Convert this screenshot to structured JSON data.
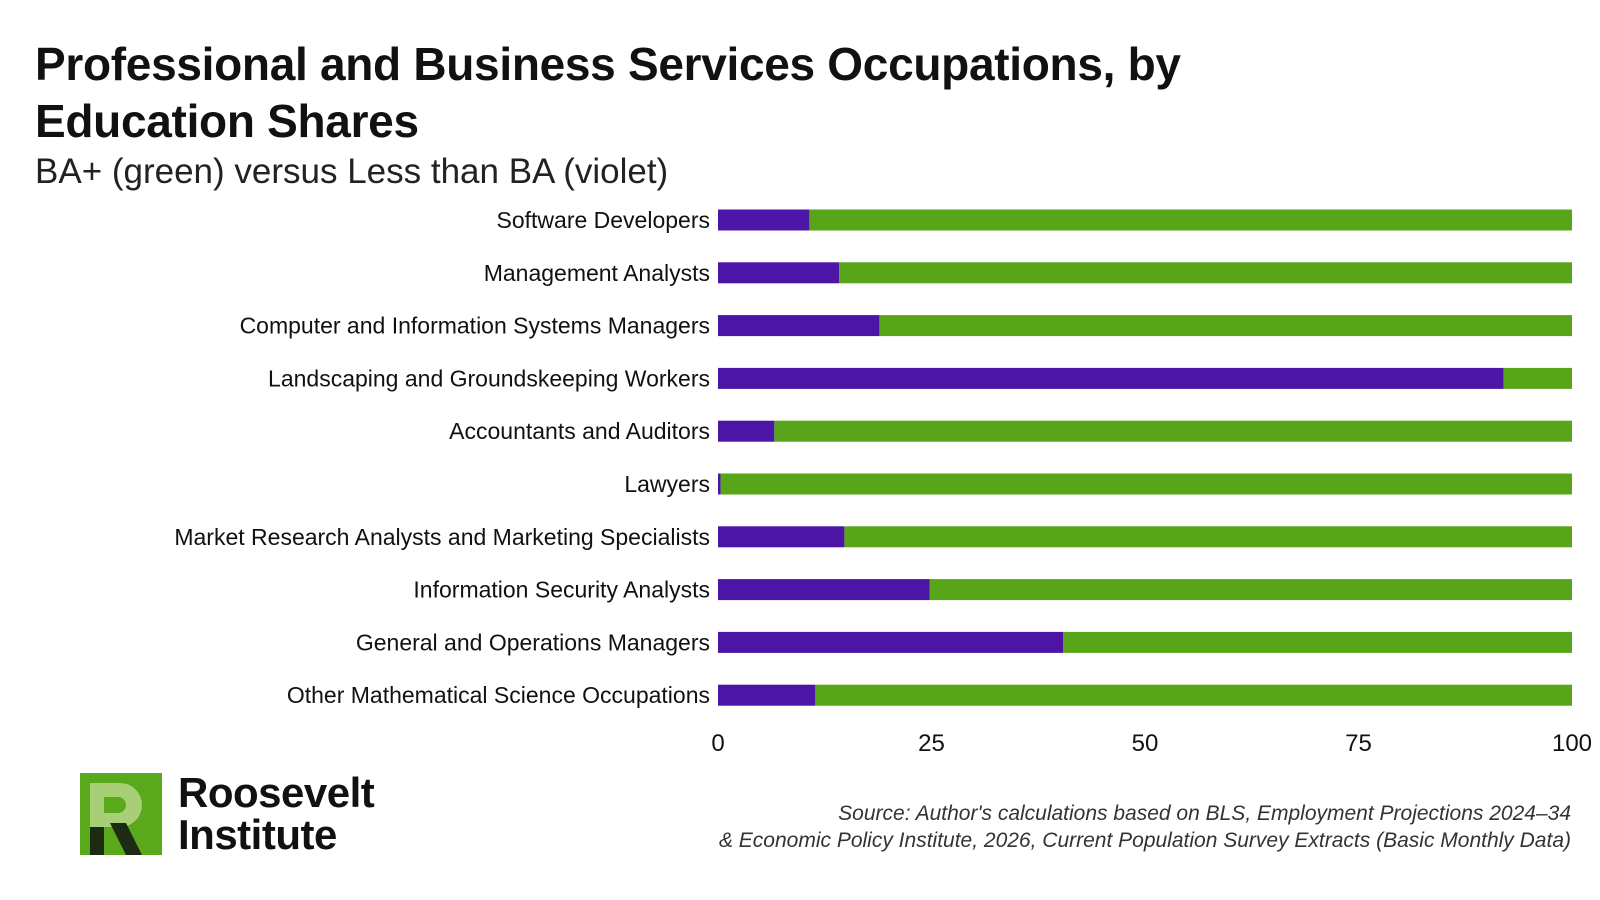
{
  "chart_data": {
    "type": "bar",
    "orientation": "horizontal",
    "stacked": true,
    "title": "Professional and Business Services Occupations, by Education Shares",
    "subtitle": "BA+ (green) versus Less than BA (violet)",
    "categories": [
      "Software Developers",
      "Management Analysts",
      "Computer and Information Systems Managers",
      "Landscaping and Groundskeeping Workers",
      "Accountants and Auditors",
      "Lawyers",
      "Market Research Analysts and Marketing Specialists",
      "Information Security Analysts",
      "General and Operations Managers",
      "Other Mathematical Science Occupations"
    ],
    "series": [
      {
        "color": "#4c15a6",
        "values": [
          10.7,
          14.2,
          18.9,
          92.0,
          6.6,
          0.3,
          14.8,
          24.8,
          40.4,
          11.4
        ]
      },
      {
        "color": "#58a519",
        "values": [
          89.3,
          85.8,
          81.1,
          8.0,
          93.4,
          99.7,
          85.2,
          75.2,
          59.6,
          88.6
        ]
      }
    ],
    "xlim": [
      0,
      100
    ],
    "xticks": [
      0,
      25,
      50,
      75,
      100
    ],
    "xlabel": "",
    "ylabel": "",
    "grid": false,
    "legend": "none"
  },
  "footer": {
    "logo_line1": "Roosevelt",
    "logo_line2": "Institute",
    "source_line1": "Source: Author's calculations based on BLS, Employment Projections 2024–34",
    "source_line2": "& Economic Policy Institute, 2026, Current Population Survey Extracts (Basic Monthly Data)"
  },
  "colors": {
    "violet": "#4c15a6",
    "green": "#58a519",
    "logo_green": "#5aa81c",
    "logo_light": "#a8cf76",
    "logo_dark": "#1d2a14"
  }
}
